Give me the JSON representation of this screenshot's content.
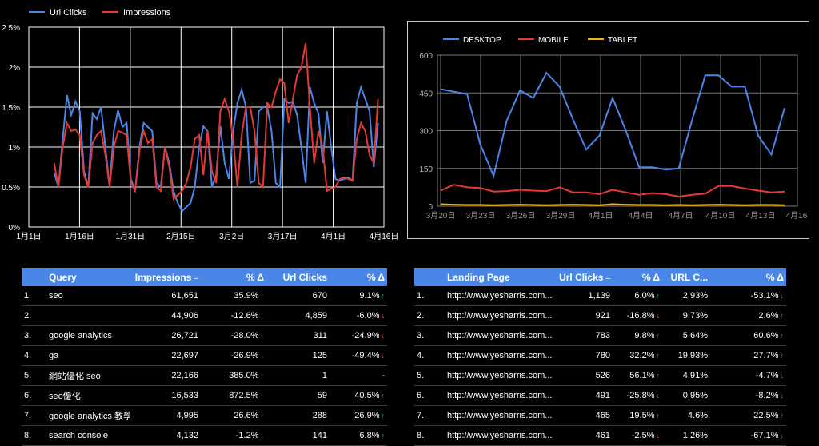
{
  "chart_data": [
    {
      "type": "line",
      "legend": [
        "Url Clicks",
        "Impressions"
      ],
      "colors": {
        "Url Clicks": "#4a86e8",
        "Impressions": "#e53935"
      },
      "ytick_labels": [
        "0%",
        "0.5%",
        "1%",
        "1.5%",
        "2%",
        "2.5%"
      ],
      "ylim": [
        0,
        2.5
      ],
      "xtick_labels": [
        "1月1日",
        "1月16日",
        "1月31日",
        "2月15日",
        "3月2日",
        "3月17日",
        "4月1日",
        "4月16日"
      ],
      "xlim": [
        0,
        105
      ],
      "x_start_index": 3,
      "series": [
        {
          "name": "Url Clicks",
          "values": [
            0.68,
            0.5,
            1.1,
            1.65,
            1.4,
            1.57,
            1.45,
            0.7,
            0.5,
            1.42,
            1.35,
            1.5,
            1.0,
            0.5,
            1.2,
            1.46,
            1.25,
            1.3,
            0.6,
            0.45,
            1.0,
            1.3,
            1.25,
            1.2,
            0.55,
            0.5,
            1.0,
            0.8,
            0.45,
            0.3,
            0.2,
            0.25,
            0.3,
            0.5,
            1.0,
            1.26,
            1.2,
            0.5,
            0.65,
            1.26,
            0.8,
            0.6,
            1.2,
            1.55,
            1.72,
            1.5,
            0.55,
            0.58,
            1.45,
            1.5,
            1.5,
            1.2,
            0.55,
            0.5,
            1.6,
            1.55,
            1.57,
            1.4,
            1.0,
            0.55,
            1.75,
            1.55,
            1.42,
            0.8,
            1.45,
            1.0,
            0.6,
            0.58,
            0.6,
            0.62,
            0.58,
            1.55,
            1.75,
            1.6,
            1.45,
            0.75,
            1.3
          ]
        },
        {
          "name": "Impressions",
          "values": [
            0.8,
            0.5,
            1.0,
            1.3,
            1.2,
            1.22,
            1.15,
            0.65,
            0.5,
            1.05,
            1.15,
            1.2,
            0.9,
            0.5,
            1.0,
            1.2,
            1.18,
            1.15,
            0.55,
            0.45,
            0.95,
            1.2,
            1.05,
            1.1,
            0.5,
            0.45,
            1.0,
            0.75,
            0.35,
            0.4,
            0.45,
            0.55,
            0.75,
            1.1,
            1.15,
            0.65,
            1.2,
            0.7,
            0.55,
            1.45,
            1.6,
            1.45,
            1.1,
            0.5,
            1.15,
            1.5,
            1.5,
            1.2,
            0.55,
            0.5,
            1.55,
            1.5,
            1.7,
            1.85,
            1.8,
            1.3,
            1.6,
            1.9,
            2.0,
            2.3,
            1.5,
            0.8,
            1.2,
            1.0,
            0.45,
            0.48,
            0.5,
            0.6,
            0.62,
            0.6,
            0.58,
            1.1,
            1.3,
            1.2,
            0.9,
            0.8,
            1.6
          ]
        }
      ]
    },
    {
      "type": "line",
      "legend": [
        "DESKTOP",
        "MOBILE",
        "TABLET"
      ],
      "colors": {
        "DESKTOP": "#4a86e8",
        "MOBILE": "#e53935",
        "TABLET": "#f1b31c"
      },
      "ytick_labels": [
        "0",
        "150",
        "300",
        "450",
        "600"
      ],
      "ylim": [
        0,
        600
      ],
      "xtick_labels": [
        "3月20日",
        "3月23日",
        "3月26日",
        "3月29日",
        "4月1日",
        "4月4日",
        "4月7日",
        "4月10日",
        "4月13日",
        "4月16日"
      ],
      "xlim": [
        0,
        27
      ],
      "series": [
        {
          "name": "DESKTOP",
          "values": [
            465,
            455,
            445,
            245,
            120,
            340,
            460,
            430,
            530,
            475,
            345,
            225,
            280,
            430,
            300,
            155,
            155,
            145,
            150,
            340,
            520,
            520,
            475,
            475,
            280,
            205,
            390
          ]
        },
        {
          "name": "MOBILE",
          "values": [
            62,
            85,
            75,
            72,
            58,
            60,
            65,
            62,
            60,
            75,
            55,
            55,
            48,
            65,
            55,
            45,
            52,
            48,
            38,
            45,
            50,
            80,
            80,
            70,
            62,
            55,
            58
          ]
        },
        {
          "name": "TABLET",
          "values": [
            8,
            6,
            5,
            5,
            4,
            5,
            6,
            5,
            4,
            5,
            6,
            5,
            4,
            8,
            6,
            5,
            5,
            4,
            5,
            4,
            5,
            6,
            5,
            4,
            5,
            5,
            4
          ]
        }
      ]
    }
  ],
  "table_left": {
    "headers": [
      "Query",
      "Impressions",
      "% Δ",
      "Url Clicks",
      "% Δ"
    ],
    "sort_indicator": "–",
    "rows": [
      {
        "n": "1.",
        "q": "seo",
        "imp": "61,651",
        "impd": "35.9%",
        "impdir": "up",
        "clk": "670",
        "clkd": "9.1%",
        "clkdir": "up"
      },
      {
        "n": "2.",
        "q": "",
        "imp": "44,906",
        "impd": "-12.6%",
        "impdir": "down",
        "clk": "4,859",
        "clkd": "-6.0%",
        "clkdir": "down"
      },
      {
        "n": "3.",
        "q": "google analytics",
        "imp": "26,721",
        "impd": "-28.0%",
        "impdir": "down",
        "clk": "311",
        "clkd": "-24.9%",
        "clkdir": "down"
      },
      {
        "n": "4.",
        "q": "ga",
        "imp": "22,697",
        "impd": "-26.9%",
        "impdir": "down",
        "clk": "125",
        "clkd": "-49.4%",
        "clkdir": "down"
      },
      {
        "n": "5.",
        "q": "網站優化 seo",
        "imp": "22,166",
        "impd": "385.0%",
        "impdir": "up",
        "clk": "1",
        "clkd": "-",
        "clkdir": ""
      },
      {
        "n": "6.",
        "q": "seo優化",
        "imp": "16,533",
        "impd": "872.5%",
        "impdir": "up",
        "clk": "59",
        "clkd": "40.5%",
        "clkdir": "up"
      },
      {
        "n": "7.",
        "q": "google analytics 教學",
        "imp": "4,995",
        "impd": "26.6%",
        "impdir": "up",
        "clk": "288",
        "clkd": "26.9%",
        "clkdir": "up"
      },
      {
        "n": "8.",
        "q": "search console",
        "imp": "4,132",
        "impd": "-1.2%",
        "impdir": "down",
        "clk": "141",
        "clkd": "6.8%",
        "clkdir": "up"
      }
    ]
  },
  "table_right": {
    "headers": [
      "Landing Page",
      "Url Clicks",
      "% Δ",
      "URL C...",
      "% Δ"
    ],
    "sort_indicator": "–",
    "rows": [
      {
        "n": "1.",
        "p": "http://www.yesharris.com...",
        "clk": "1,139",
        "clkd": "6.0%",
        "clkdir": "up",
        "ctr": "2.93%",
        "ctrd": "-53.1%",
        "ctrdir": "down"
      },
      {
        "n": "2.",
        "p": "http://www.yesharris.com...",
        "clk": "921",
        "clkd": "-16.8%",
        "clkdir": "down",
        "ctr": "9.73%",
        "ctrd": "2.6%",
        "ctrdir": "up"
      },
      {
        "n": "3.",
        "p": "http://www.yesharris.com...",
        "clk": "783",
        "clkd": "9.8%",
        "clkdir": "up",
        "ctr": "5.64%",
        "ctrd": "60.6%",
        "ctrdir": "up"
      },
      {
        "n": "4.",
        "p": "http://www.yesharris.com...",
        "clk": "780",
        "clkd": "32.2%",
        "clkdir": "up",
        "ctr": "19.93%",
        "ctrd": "27.7%",
        "ctrdir": "up"
      },
      {
        "n": "5.",
        "p": "http://www.yesharris.com...",
        "clk": "526",
        "clkd": "56.1%",
        "clkdir": "up",
        "ctr": "4.91%",
        "ctrd": "-4.7%",
        "ctrdir": "down"
      },
      {
        "n": "6.",
        "p": "http://www.yesharris.com...",
        "clk": "491",
        "clkd": "-25.8%",
        "clkdir": "down",
        "ctr": "0.95%",
        "ctrd": "-8.2%",
        "ctrdir": "down"
      },
      {
        "n": "7.",
        "p": "http://www.yesharris.com...",
        "clk": "465",
        "clkd": "19.5%",
        "clkdir": "up",
        "ctr": "4.6%",
        "ctrd": "22.5%",
        "ctrdir": "up"
      },
      {
        "n": "8.",
        "p": "http://www.yesharris.com...",
        "clk": "461",
        "clkd": "-2.5%",
        "clkdir": "down",
        "ctr": "1.26%",
        "ctrd": "-67.1%",
        "ctrdir": "down"
      }
    ]
  }
}
